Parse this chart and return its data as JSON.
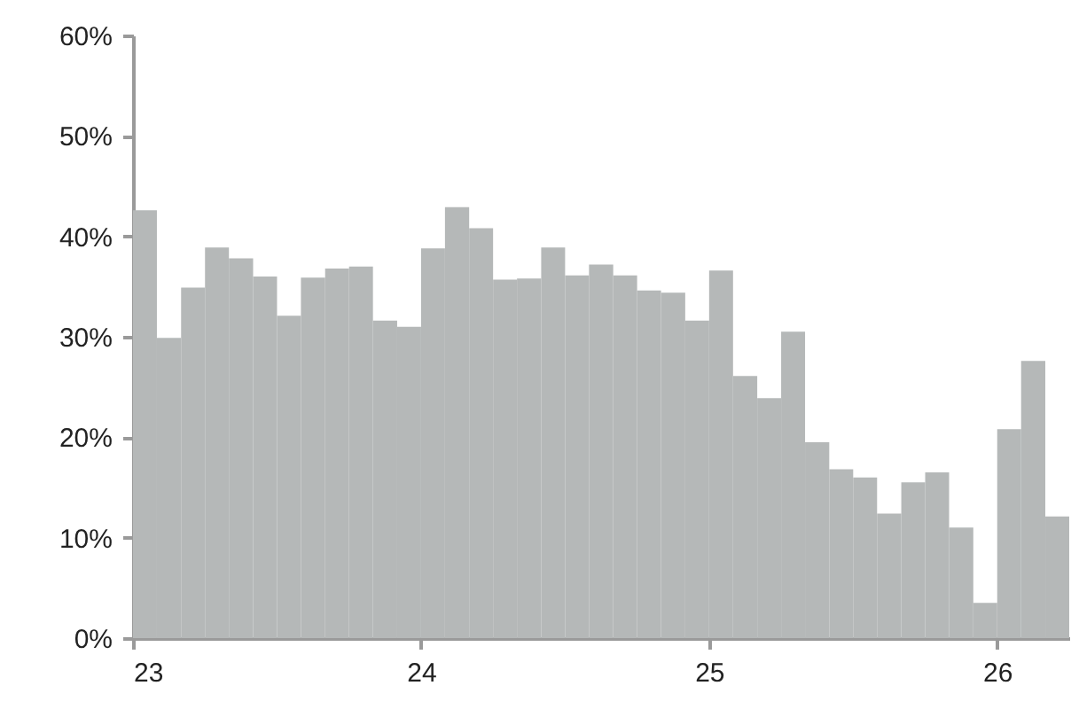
{
  "chart_data": {
    "type": "histogram",
    "bins": [
      23,
      23.083,
      23.167,
      23.25,
      23.333,
      23.417,
      23.5,
      23.583,
      23.667,
      23.75,
      23.833,
      23.917,
      24,
      24.083,
      24.167,
      24.25,
      24.333,
      24.417,
      24.5,
      24.583,
      24.667,
      24.75,
      24.833,
      24.917,
      25,
      25.083,
      25.167,
      25.25,
      25.333,
      25.417,
      25.5,
      25.583,
      25.667,
      25.75,
      25.833,
      25.917,
      26,
      26.083,
      26.167,
      26.25
    ],
    "values": [
      42.6,
      29.9,
      34.9,
      38.9,
      37.8,
      36.0,
      32.1,
      35.9,
      36.8,
      37.0,
      31.6,
      31.0,
      38.8,
      42.9,
      40.8,
      35.7,
      35.8,
      38.9,
      36.1,
      37.2,
      36.1,
      34.6,
      34.4,
      31.6,
      36.6,
      26.1,
      23.9,
      30.5,
      19.5,
      16.8,
      16.0,
      12.4,
      15.5,
      16.5,
      11.0,
      3.5,
      20.8,
      27.6,
      12.1
    ],
    "color": "#b5b8b8",
    "xlim": [
      23,
      26.25
    ],
    "xticks": [
      23,
      24,
      25,
      26
    ],
    "ylim": [
      0,
      60
    ],
    "yticks": [
      {
        "value": 0,
        "label": "0%"
      },
      {
        "value": 10,
        "label": "10%"
      },
      {
        "value": 20,
        "label": "20%"
      },
      {
        "value": 30,
        "label": "30%"
      },
      {
        "value": 40,
        "label": "40%"
      },
      {
        "value": 50,
        "label": "50%"
      },
      {
        "value": 60,
        "label": "60%"
      }
    ],
    "grid": false
  }
}
